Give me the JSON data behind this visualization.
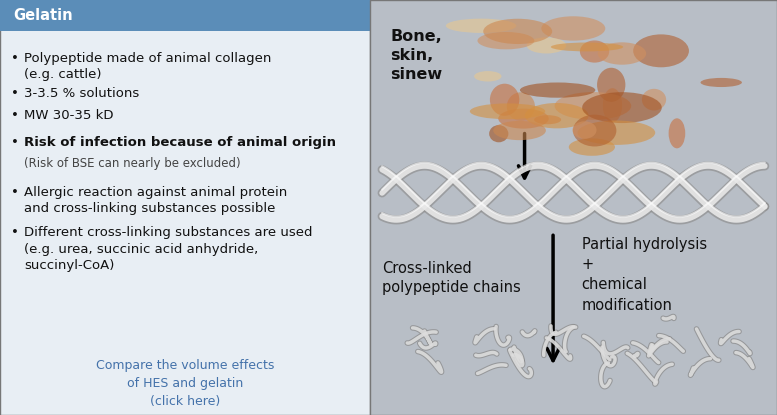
{
  "title": "Gelatin",
  "title_bg_color": "#5b8db8",
  "title_text_color": "#ffffff",
  "left_bg_color": "#e8eef4",
  "right_bg_color": "#b8bec6",
  "outer_bg_color": "#c8cdd4",
  "border_color": "#777777",
  "bullet_items": [
    {
      "text": "Polypeptide made of animal collagen\n(e.g. cattle)",
      "bold": false,
      "sub": false
    },
    {
      "text": "3-3.5 % solutions",
      "bold": false,
      "sub": false
    },
    {
      "text": "MW 30-35 kD",
      "bold": false,
      "sub": false
    },
    {
      "text": "Risk of infection because of animal origin",
      "bold": true,
      "sub": false
    },
    {
      "text": "(Risk of BSE can nearly be excluded)",
      "bold": false,
      "sub": true
    },
    {
      "text": "Allergic reaction against animal protein\nand cross-linking substances possible",
      "bold": false,
      "sub": false
    },
    {
      "text": "Different cross-linking substances are used\n(e.g. urea, succinic acid anhydride,\nsuccinyl-CoA)",
      "bold": false,
      "sub": false
    }
  ],
  "link_text": "Compare the volume effects\nof HES and gelatin\n(click here)",
  "link_color": "#4472aa",
  "right_labels": {
    "bone_label": "Bone,\nskin,\nsinew",
    "partial_label": "Partial hydrolysis\n+\nchemical\nmodification",
    "cross_label": "Cross-linked\npolypeptide chains"
  },
  "text_color_dark": "#111111",
  "font_size_title": 10.5,
  "font_size_bullet": 9.5,
  "font_size_right": 10.5
}
